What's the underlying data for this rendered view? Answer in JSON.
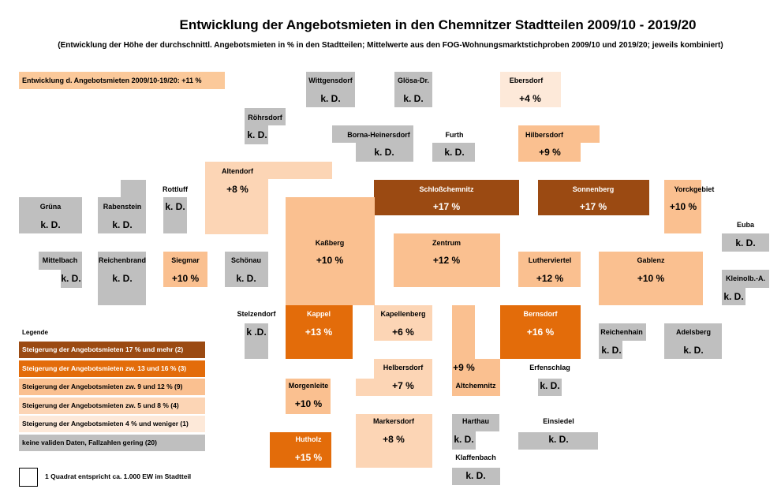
{
  "title": "Entwicklung der Angebotsmieten in den Chemnitzer Stadtteilen 2009/10 - 2019/20",
  "subtitle": "(Entwicklung der Höhe der durchschnittl. Angebotsmieten in % in den Stadtteilen; Mittelwerte aus den FOG-Wohnungsmarktstichproben 2009/10 und 2019/20; jeweils kombiniert)",
  "summary": "Entwicklung d. Angebotsmieten 2009/10-19/20: +11 %",
  "colors": {
    "c17": "#9b4a12",
    "c13": "#e36c0a",
    "c9": "#fac090",
    "c5": "#fcd5b5",
    "c4": "#fde9d9",
    "nd": "#bfbfbf"
  },
  "legend": {
    "title": "Legende",
    "items": [
      {
        "label": "Steigerung der Angebotsmieten 17 % und mehr (2)",
        "color": "#9b4a12",
        "light": true
      },
      {
        "label": "Steigerung der Angebotsmieten zw. 13 und 16 % (3)",
        "color": "#e36c0a",
        "light": true
      },
      {
        "label": "Steigerung der Angebotsmieten zw. 9 und 12 % (9)",
        "color": "#fac090",
        "light": false
      },
      {
        "label": "Steigerung der Angebotsmieten zw. 5 und 8 % (4)",
        "color": "#fcd5b5",
        "light": false
      },
      {
        "label": "Steigerung der Angebotsmieten 4 %  und weniger (1)",
        "color": "#fde9d9",
        "light": false
      },
      {
        "label": "keine validen Daten, Fallzahlen gering (20)",
        "color": "#bfbfbf",
        "light": false
      }
    ]
  },
  "scale_note": "1 Quadrat entspricht ca. 1.000 EW im Stadtteil",
  "chart_data": {
    "type": "cartogram",
    "districts": [
      {
        "name": "Wittgensdorf",
        "value": "k. D.",
        "pct": null
      },
      {
        "name": "Glösa-Dr.",
        "value": "k. D.",
        "pct": null
      },
      {
        "name": "Ebersdorf",
        "value": "+4 %",
        "pct": 4
      },
      {
        "name": "Röhrsdorf",
        "value": "k. D.",
        "pct": null
      },
      {
        "name": "Borna-Heinersdorf",
        "value": "k. D.",
        "pct": null
      },
      {
        "name": "Furth",
        "value": "k. D.",
        "pct": null
      },
      {
        "name": "Hilbersdorf",
        "value": "+9 %",
        "pct": 9
      },
      {
        "name": "Altendorf",
        "value": "+8 %",
        "pct": 8
      },
      {
        "name": "Rottluff",
        "value": "k. D.",
        "pct": null
      },
      {
        "name": "Schloßchemnitz",
        "value": "+17 %",
        "pct": 17
      },
      {
        "name": "Sonnenberg",
        "value": "+17 %",
        "pct": 17
      },
      {
        "name": "Yorckgebiet",
        "value": "+10 %",
        "pct": 10
      },
      {
        "name": "Grüna",
        "value": "k. D.",
        "pct": null
      },
      {
        "name": "Rabenstein",
        "value": "k. D.",
        "pct": null
      },
      {
        "name": "Euba",
        "value": "k. D.",
        "pct": null
      },
      {
        "name": "Kaßberg",
        "value": "+10 %",
        "pct": 10
      },
      {
        "name": "Zentrum",
        "value": "+12 %",
        "pct": 12
      },
      {
        "name": "Mittelbach",
        "value": "k. D.",
        "pct": null
      },
      {
        "name": "Reichenbrand",
        "value": "k. D.",
        "pct": null
      },
      {
        "name": "Siegmar",
        "value": "+10 %",
        "pct": 10
      },
      {
        "name": "Schönau",
        "value": "k. D.",
        "pct": null
      },
      {
        "name": "Lutherviertel",
        "value": "+12 %",
        "pct": 12
      },
      {
        "name": "Gablenz",
        "value": "+10 %",
        "pct": 10
      },
      {
        "name": "Kleinolb.-A.",
        "value": "k. D.",
        "pct": null
      },
      {
        "name": "Stelzendorf",
        "value": "k .D.",
        "pct": null
      },
      {
        "name": "Kappel",
        "value": "+13 %",
        "pct": 13
      },
      {
        "name": "Kapellenberg",
        "value": "+6 %",
        "pct": 6
      },
      {
        "name": "Bernsdorf",
        "value": "+16 %",
        "pct": 16
      },
      {
        "name": "Reichenhain",
        "value": "k. D.",
        "pct": null
      },
      {
        "name": "Adelsberg",
        "value": "k. D.",
        "pct": null
      },
      {
        "name": "Helbersdorf",
        "value": "+7 %",
        "pct": 7
      },
      {
        "name": "Altchemnitz",
        "value": "+9 %",
        "pct": 9
      },
      {
        "name": "Erfenschlag",
        "value": "k. D.",
        "pct": null
      },
      {
        "name": "Morgenleite",
        "value": "+10 %",
        "pct": 10
      },
      {
        "name": "Markersdorf",
        "value": "+8 %",
        "pct": 8
      },
      {
        "name": "Harthau",
        "value": "k. D.",
        "pct": null
      },
      {
        "name": "Einsiedel",
        "value": "k. D.",
        "pct": null
      },
      {
        "name": "Hutholz",
        "value": "+15 %",
        "pct": 15
      },
      {
        "name": "Klaffenbach",
        "value": "k. D.",
        "pct": null
      }
    ]
  }
}
